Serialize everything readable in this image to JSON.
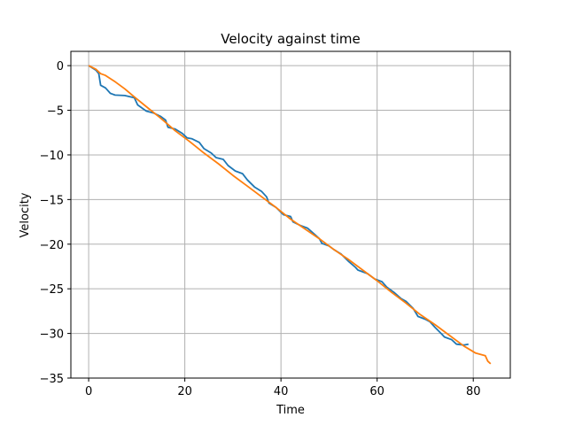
{
  "chart_data": {
    "type": "line",
    "title": "Velocity against time",
    "xlabel": "Time",
    "ylabel": "Velocity",
    "xlim": [
      -3.7,
      87.7
    ],
    "ylim": [
      -35,
      1.6
    ],
    "xticks": [
      0,
      20,
      40,
      60,
      80
    ],
    "yticks": [
      0,
      -5,
      -10,
      -15,
      -20,
      -25,
      -30,
      -35
    ],
    "grid": true,
    "legend": "none",
    "series": [
      {
        "color": "#1f77b4",
        "points": [
          [
            0,
            0
          ],
          [
            1.5,
            -0.5
          ],
          [
            2.1,
            -0.9
          ],
          [
            2.5,
            -2.2
          ],
          [
            3.5,
            -2.5
          ],
          [
            4.5,
            -3.1
          ],
          [
            5.5,
            -3.3
          ],
          [
            7.5,
            -3.35
          ],
          [
            9.5,
            -3.6
          ],
          [
            10.2,
            -4.4
          ],
          [
            12,
            -5.1
          ],
          [
            13.5,
            -5.3
          ],
          [
            15,
            -5.7
          ],
          [
            16,
            -6.1
          ],
          [
            16.5,
            -6.9
          ],
          [
            18,
            -7.1
          ],
          [
            19.5,
            -7.6
          ],
          [
            20.5,
            -8.1
          ],
          [
            21.5,
            -8.2
          ],
          [
            23,
            -8.6
          ],
          [
            24,
            -9.3
          ],
          [
            25.5,
            -9.8
          ],
          [
            26.5,
            -10.3
          ],
          [
            28,
            -10.5
          ],
          [
            29,
            -11.2
          ],
          [
            30.5,
            -11.8
          ],
          [
            32,
            -12.1
          ],
          [
            33,
            -12.8
          ],
          [
            34.5,
            -13.6
          ],
          [
            36,
            -14.1
          ],
          [
            37,
            -14.7
          ],
          [
            37.5,
            -15.4
          ],
          [
            39,
            -15.9
          ],
          [
            40.5,
            -16.7
          ],
          [
            42,
            -16.9
          ],
          [
            42.5,
            -17.5
          ],
          [
            44,
            -17.9
          ],
          [
            45.5,
            -18.2
          ],
          [
            47,
            -18.9
          ],
          [
            48,
            -19.4
          ],
          [
            48.5,
            -19.9
          ],
          [
            50,
            -20.2
          ],
          [
            51,
            -20.6
          ],
          [
            52.5,
            -21.1
          ],
          [
            54,
            -21.9
          ],
          [
            55.5,
            -22.6
          ],
          [
            56,
            -22.9
          ],
          [
            58,
            -23.3
          ],
          [
            59.5,
            -23.9
          ],
          [
            61,
            -24.2
          ],
          [
            62,
            -24.8
          ],
          [
            63.5,
            -25.4
          ],
          [
            65,
            -26.1
          ],
          [
            66,
            -26.4
          ],
          [
            67.5,
            -27.2
          ],
          [
            68.5,
            -28.1
          ],
          [
            70,
            -28.4
          ],
          [
            71,
            -28.7
          ],
          [
            72,
            -29.3
          ],
          [
            73.5,
            -30.1
          ],
          [
            74,
            -30.4
          ],
          [
            75.5,
            -30.7
          ],
          [
            76.5,
            -31.2
          ],
          [
            78,
            -31.3
          ],
          [
            79,
            -31.2
          ]
        ]
      },
      {
        "color": "#ff7f0e",
        "points": [
          [
            0,
            0
          ],
          [
            1.5,
            -0.4
          ],
          [
            2.5,
            -0.9
          ],
          [
            3.5,
            -1.1
          ],
          [
            5.5,
            -1.8
          ],
          [
            7.5,
            -2.6
          ],
          [
            9.5,
            -3.5
          ],
          [
            12,
            -4.6
          ],
          [
            15,
            -5.9
          ],
          [
            18,
            -7.3
          ],
          [
            21,
            -8.5
          ],
          [
            24,
            -9.8
          ],
          [
            27,
            -11.0
          ],
          [
            30,
            -12.3
          ],
          [
            33,
            -13.5
          ],
          [
            36,
            -14.7
          ],
          [
            39,
            -15.9
          ],
          [
            42,
            -17.2
          ],
          [
            45,
            -18.3
          ],
          [
            48,
            -19.4
          ],
          [
            51,
            -20.6
          ],
          [
            54,
            -21.7
          ],
          [
            57,
            -22.9
          ],
          [
            60,
            -24.1
          ],
          [
            63,
            -25.4
          ],
          [
            66,
            -26.6
          ],
          [
            69,
            -27.9
          ],
          [
            72,
            -29.0
          ],
          [
            75,
            -30.2
          ],
          [
            78,
            -31.4
          ],
          [
            80.5,
            -32.2
          ],
          [
            82.5,
            -32.5
          ],
          [
            83,
            -33.1
          ],
          [
            83.6,
            -33.4
          ]
        ]
      }
    ]
  }
}
